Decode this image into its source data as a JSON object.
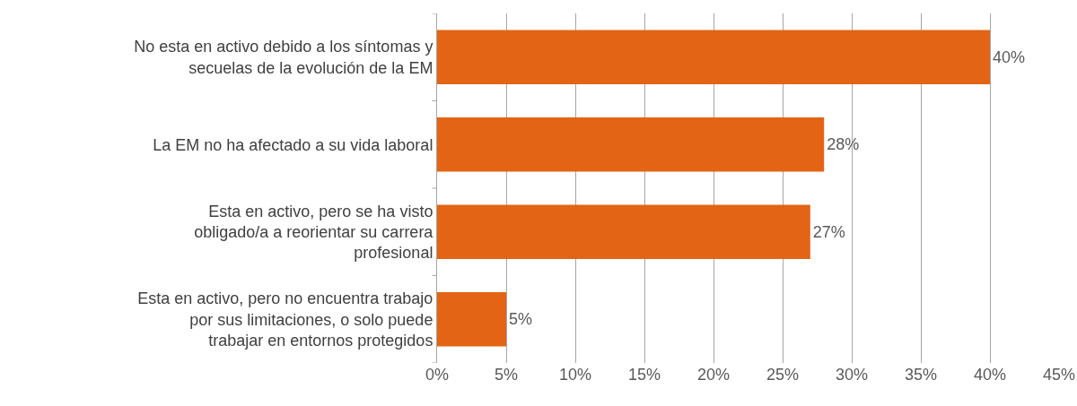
{
  "chart_data": {
    "type": "bar",
    "orientation": "horizontal",
    "categories": [
      "No esta en activo debido a los síntomas y secuelas de la evolución de la EM",
      "La EM no ha afectado a su vida laboral",
      "Esta en activo, pero se ha visto obligado/a a reorientar su carrera profesional",
      "Esta en activo, pero no encuentra trabajo por sus limitaciones, o solo puede trabajar en entornos protegidos"
    ],
    "values": [
      40,
      28,
      27,
      5
    ],
    "value_labels": [
      "40%",
      "28%",
      "27%",
      "5%"
    ],
    "color": "#e36414",
    "xlim": [
      0,
      45
    ],
    "xticks": [
      {
        "value": 0,
        "label": "0%"
      },
      {
        "value": 5,
        "label": "5%"
      },
      {
        "value": 10,
        "label": "10%"
      },
      {
        "value": 15,
        "label": "15%"
      },
      {
        "value": 20,
        "label": "20%"
      },
      {
        "value": 25,
        "label": "25%"
      },
      {
        "value": 30,
        "label": "30%"
      },
      {
        "value": 35,
        "label": "35%"
      },
      {
        "value": 40,
        "label": "40%"
      },
      {
        "value": 45,
        "label": "45%"
      }
    ],
    "grid": "x"
  }
}
